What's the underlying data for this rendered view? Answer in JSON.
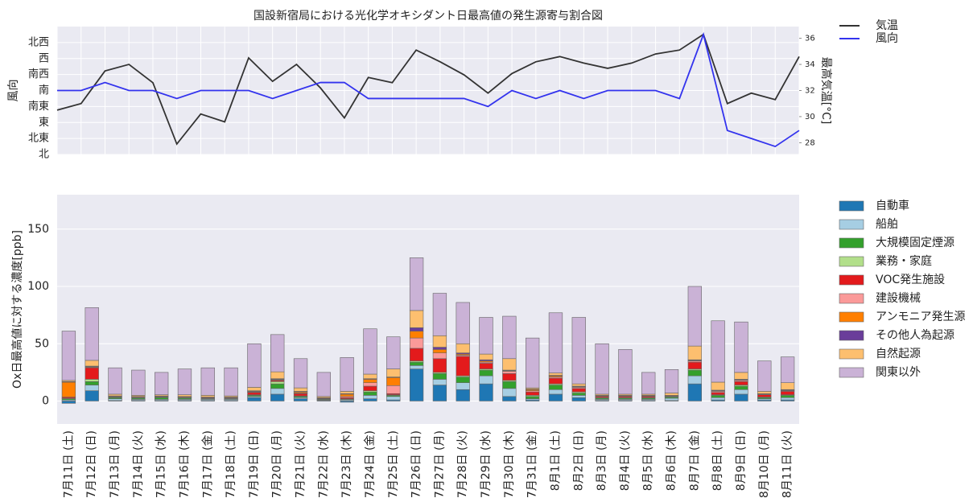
{
  "chart_data": [
    {
      "type": "line",
      "title": "国設新宿局における光化学オキシダント日最高値の発生源寄与割合図",
      "ylabel": "風向",
      "y2label": "最高気温[°C]",
      "ylim": [
        0,
        8
      ],
      "yticks": [
        {
          "value": 0,
          "label": "北"
        },
        {
          "value": 1,
          "label": "北東"
        },
        {
          "value": 2,
          "label": "東"
        },
        {
          "value": 3,
          "label": "南東"
        },
        {
          "value": 4,
          "label": "南"
        },
        {
          "value": 5,
          "label": "南西"
        },
        {
          "value": 6,
          "label": "西"
        },
        {
          "value": 7,
          "label": "北西"
        }
      ],
      "y2lim": [
        27.1,
        36.9
      ],
      "y2ticks": [
        28,
        30,
        32,
        34,
        36
      ],
      "grid": true,
      "legend": "outside-upper-right",
      "series": [
        {
          "name": "気温",
          "color": "#333333",
          "axis": "y2",
          "values": [
            30.5,
            31.0,
            33.5,
            34.0,
            32.6,
            27.9,
            30.2,
            29.6,
            34.5,
            32.7,
            34.0,
            32.2,
            29.9,
            33.0,
            32.6,
            35.1,
            34.2,
            33.2,
            31.8,
            33.3,
            34.2,
            34.6,
            34.1,
            33.7,
            34.1,
            34.8,
            35.1,
            36.3,
            31.0,
            31.8,
            31.3,
            34.6
          ]
        },
        {
          "name": "風向",
          "color": "#3333ee",
          "axis": "y",
          "values": [
            4,
            4,
            4.5,
            4,
            4,
            3.5,
            4,
            4,
            4,
            3.5,
            4,
            4.5,
            4.5,
            3.5,
            3.5,
            3.5,
            3.5,
            3.5,
            3,
            4,
            3.5,
            4,
            3.5,
            4,
            4,
            4,
            3.5,
            7.5,
            1.5,
            1,
            0.5,
            1.5
          ]
        }
      ]
    },
    {
      "type": "bar",
      "stacked": true,
      "ylabel": "Ox日最高値に対する濃度[ppb]",
      "ylim": [
        -20,
        180
      ],
      "yticks": [
        0,
        50,
        100,
        150
      ],
      "grid": true,
      "legend": "outside-upper-right",
      "categories": [
        "7月11日 (土)",
        "7月12日 (日)",
        "7月13日 (月)",
        "7月14日 (火)",
        "7月15日 (水)",
        "7月16日 (木)",
        "7月17日 (金)",
        "7月18日 (土)",
        "7月19日 (日)",
        "7月20日 (月)",
        "7月21日 (火)",
        "7月22日 (水)",
        "7月23日 (木)",
        "7月24日 (金)",
        "7月25日 (土)",
        "7月26日 (日)",
        "7月27日 (月)",
        "7月28日 (火)",
        "7月29日 (水)",
        "7月30日 (木)",
        "7月31日 (金)",
        "8月1日 (土)",
        "8月2日 (日)",
        "8月3日 (月)",
        "8月4日 (火)",
        "8月5日 (水)",
        "8月6日 (木)",
        "8月7日 (金)",
        "8月8日 (土)",
        "8月9日 (日)",
        "8月10日 (月)",
        "8月11日 (火)"
      ],
      "series": [
        {
          "name": "自動車",
          "color": "#1f77b4",
          "values": [
            -2,
            9,
            0.5,
            0.5,
            0.5,
            0.5,
            0.5,
            0.5,
            3,
            6,
            2,
            0.5,
            -1,
            2,
            1,
            28,
            14,
            10,
            15,
            4,
            1,
            6,
            3,
            0.5,
            0.5,
            0.5,
            0.5,
            15,
            1,
            6,
            1,
            1
          ]
        },
        {
          "name": "船舶",
          "color": "#a6cee3",
          "values": [
            1,
            5,
            1.5,
            1,
            1,
            1,
            1,
            1,
            1,
            5,
            1,
            0.5,
            1,
            3,
            3,
            3,
            5,
            6,
            7,
            7,
            1,
            4,
            2,
            1,
            1,
            1,
            2,
            7,
            2,
            4,
            1,
            2
          ]
        },
        {
          "name": "大規模固定煙源",
          "color": "#33a02c",
          "values": [
            1,
            3,
            1,
            1,
            1.5,
            1,
            0.5,
            0.5,
            1,
            4,
            1,
            0.5,
            0.5,
            3,
            1,
            3,
            5,
            5,
            5,
            6,
            2,
            4,
            2,
            1,
            1,
            1,
            1,
            5,
            2,
            3,
            1,
            2
          ]
        },
        {
          "name": "業務・家庭",
          "color": "#b2df8a",
          "values": [
            0.5,
            2,
            0.5,
            0.5,
            0.5,
            0.5,
            0.5,
            0.5,
            0.5,
            2,
            0.5,
            0.5,
            0.5,
            1,
            0.5,
            1,
            1,
            1,
            1,
            1,
            1,
            1,
            1,
            0.5,
            0.5,
            0.5,
            0.5,
            1,
            0.5,
            1,
            0.5,
            0.5
          ]
        },
        {
          "name": "VOC発生施設",
          "color": "#e31a1c",
          "values": [
            1,
            10,
            0.5,
            0.5,
            0.5,
            0.5,
            0.5,
            0.5,
            2,
            1,
            2,
            0.5,
            1,
            4,
            1,
            11,
            12,
            17,
            5,
            6,
            3,
            5,
            3,
            1,
            1,
            1,
            0.5,
            6,
            2,
            3,
            2,
            3
          ]
        },
        {
          "name": "建設機械",
          "color": "#fb9a99",
          "values": [
            0,
            0.5,
            0,
            0,
            0,
            0,
            0,
            0,
            0.5,
            0.5,
            0.5,
            0,
            1,
            3,
            7,
            9,
            5,
            1,
            1,
            2,
            1,
            1,
            1,
            0.5,
            0.5,
            0.5,
            0,
            1,
            1,
            1,
            0.5,
            0.5
          ]
        },
        {
          "name": "アンモニア発生源",
          "color": "#ff7f00",
          "values": [
            13,
            0.5,
            0.5,
            0.5,
            0.5,
            0.5,
            0.5,
            0.5,
            0.5,
            0.5,
            1,
            0.5,
            2,
            3,
            7,
            6,
            3,
            1,
            1,
            0.5,
            1,
            1,
            0.5,
            0.5,
            0.5,
            0.5,
            0.5,
            0.5,
            0.5,
            0.5,
            0.5,
            0.5
          ]
        },
        {
          "name": "その他人為起源",
          "color": "#6a3d9a",
          "values": [
            0.5,
            0.5,
            0,
            0,
            0,
            0,
            0,
            0,
            0.5,
            0.5,
            0.5,
            0,
            0.5,
            0.5,
            0.5,
            3,
            2,
            1,
            1,
            0.5,
            0.5,
            0.5,
            0.5,
            0,
            0,
            0,
            0,
            0.5,
            0.5,
            0.5,
            0,
            0.5
          ]
        },
        {
          "name": "自然起源",
          "color": "#fdbf6f",
          "values": [
            1,
            5,
            1.5,
            1,
            1,
            1.5,
            1.5,
            1,
            3,
            6,
            3,
            1,
            2,
            4,
            7,
            15,
            10,
            8,
            5,
            10,
            1,
            2,
            2,
            1,
            1,
            1,
            2,
            12,
            7,
            6,
            2,
            6
          ]
        },
        {
          "name": "関東以外",
          "color": "#cab2d6",
          "values": [
            43,
            46,
            23,
            22,
            19.5,
            22.5,
            24,
            24.5,
            38,
            32.5,
            25.5,
            21,
            29.5,
            39.5,
            28,
            46,
            37,
            36,
            32,
            37,
            43.5,
            52.5,
            58,
            44,
            39,
            19,
            20.5,
            52,
            53.5,
            44,
            26.5,
            22.5
          ]
        }
      ]
    }
  ]
}
